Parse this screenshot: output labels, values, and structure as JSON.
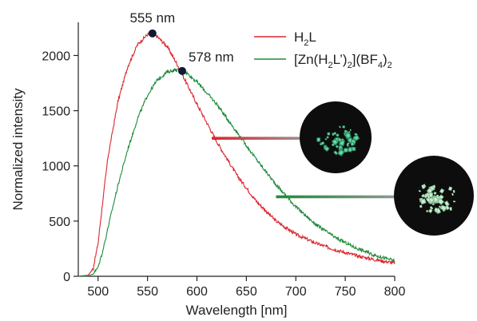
{
  "chart_data": {
    "type": "line",
    "xlabel": "Wavelength [nm]",
    "ylabel": "Normalized intensity",
    "xlim": [
      480,
      800
    ],
    "ylim": [
      0,
      2300
    ],
    "xticks": [
      500,
      550,
      600,
      650,
      700,
      750,
      800
    ],
    "yticks": [
      0,
      500,
      1000,
      1500,
      2000
    ],
    "legend_position": "top-right",
    "series": [
      {
        "name": "H2L",
        "color": "#d9262e",
        "x": [
          480,
          490,
          495,
          500,
          505,
          510,
          520,
          530,
          540,
          550,
          555,
          560,
          570,
          580,
          590,
          600,
          620,
          640,
          660,
          680,
          700,
          720,
          740,
          760,
          780,
          800
        ],
        "y": [
          0,
          10,
          70,
          300,
          700,
          1080,
          1580,
          1900,
          2100,
          2190,
          2200,
          2170,
          2080,
          1920,
          1740,
          1560,
          1220,
          920,
          680,
          500,
          380,
          300,
          240,
          190,
          150,
          120
        ]
      },
      {
        "name": "[Zn(H2L')2](BF4)2",
        "color": "#1e8a3a",
        "x": [
          480,
          490,
          495,
          500,
          505,
          510,
          520,
          530,
          540,
          550,
          560,
          570,
          578,
          585,
          590,
          600,
          620,
          640,
          660,
          680,
          700,
          720,
          740,
          760,
          780,
          800
        ],
        "y": [
          0,
          5,
          20,
          80,
          240,
          440,
          820,
          1150,
          1430,
          1640,
          1780,
          1850,
          1870,
          1860,
          1840,
          1760,
          1560,
          1310,
          1060,
          830,
          630,
          470,
          350,
          260,
          190,
          140
        ]
      }
    ],
    "annotations": [
      {
        "label": "555 nm",
        "x": 555,
        "y": 2200
      },
      {
        "label": "578 nm",
        "x": 585,
        "y": 1860
      }
    ],
    "connectors": [
      {
        "series": 0,
        "from_x": 615,
        "y": 1250,
        "to_photo": 0
      },
      {
        "series": 1,
        "from_x": 680,
        "y": 720,
        "to_photo": 1
      }
    ]
  },
  "legend": {
    "series1": {
      "base": "H",
      "sub1": "2",
      "tail": "L"
    },
    "series2": {
      "p1": "[Zn(H",
      "s1": "2",
      "p2": "L’)",
      "s2": "2",
      "p3": "](BF",
      "s3": "4",
      "p4": ")",
      "s4": "2"
    }
  },
  "photos": [
    {
      "name": "powder-photo-1"
    },
    {
      "name": "powder-photo-2"
    }
  ]
}
